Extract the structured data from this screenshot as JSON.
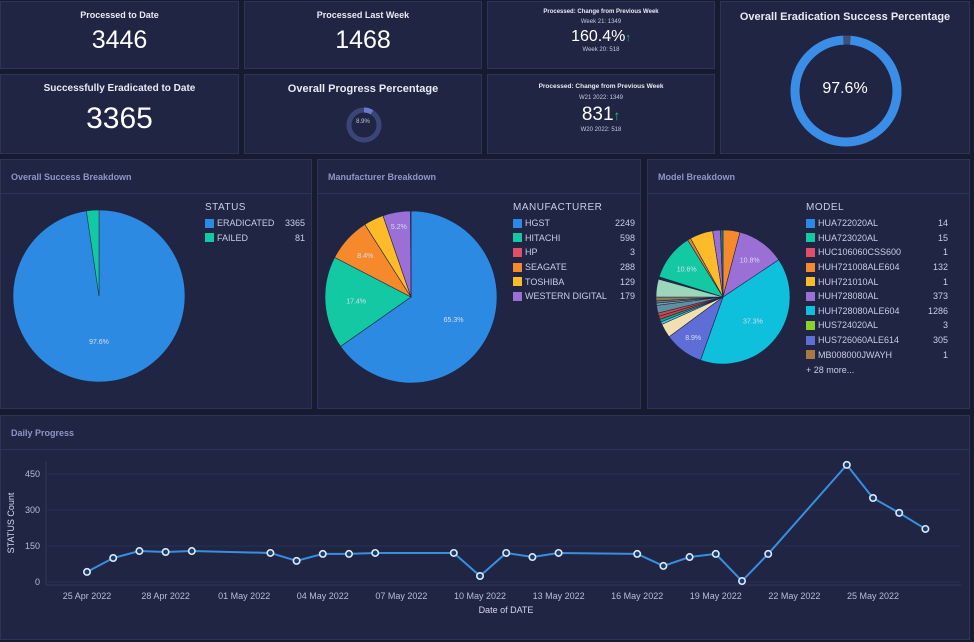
{
  "kpis": {
    "processed_to_date": {
      "title": "Processed to Date",
      "value": "3446"
    },
    "processed_last_week": {
      "title": "Processed Last Week",
      "value": "1468"
    },
    "successfully_eradicated": {
      "title": "Successfully Eradicated to Date",
      "value": "3365"
    },
    "change_pct": {
      "title": "Processed: Change from Previous Week",
      "current": "Week 21: 1349",
      "value": "160.4%",
      "previous": "Week 20: 518",
      "trend": "up"
    },
    "change_abs": {
      "title": "Processed: Change from Previous Week",
      "current": "W21 2022: 1349",
      "value": "831",
      "previous": "W20 2022: 518",
      "trend": "up"
    },
    "overall_progress": {
      "title": "Overall Progress Percentage",
      "label": "8.9%",
      "fraction": 0.089
    },
    "eradication_success": {
      "title": "Overall Eradication Success Percentage",
      "label": "97.6%",
      "fraction": 0.976
    }
  },
  "icons": {
    "trend_up": "↑"
  },
  "colors": {
    "blue": "#2d8ae3",
    "teal": "#12c9a4",
    "red": "#e24d6b",
    "orange": "#f6892c",
    "yellow": "#fdbb2a",
    "purple": "#9a6fd6",
    "cyan": "#0fc0dc",
    "green": "#8ad12e",
    "indigo": "#5e6ed6",
    "brown": "#a67a41"
  },
  "success_breakdown": {
    "title": "Overall Success Breakdown",
    "legend_title": "STATUS",
    "items": [
      {
        "label": "ERADICATED",
        "value": "3365",
        "color": "#2d8ae3"
      },
      {
        "label": "FAILED",
        "value": "81",
        "color": "#12c9a4"
      }
    ],
    "pie_label": "97.6%"
  },
  "manufacturer_breakdown": {
    "title": "Manufacturer Breakdown",
    "legend_title": "MANUFACTURER",
    "items": [
      {
        "label": "HGST",
        "value": "2249",
        "color": "#2d8ae3"
      },
      {
        "label": "HITACHI",
        "value": "598",
        "color": "#12c9a4"
      },
      {
        "label": "HP",
        "value": "3",
        "color": "#e24d6b"
      },
      {
        "label": "SEAGATE",
        "value": "288",
        "color": "#f6892c"
      },
      {
        "label": "TOSHIBA",
        "value": "129",
        "color": "#fdbb2a"
      },
      {
        "label": "WESTERN DIGITAL",
        "value": "179",
        "color": "#9a6fd6"
      }
    ],
    "slice_labels": [
      "65.3%",
      "17.4%",
      "8.4%",
      "5.2%"
    ]
  },
  "model_breakdown": {
    "title": "Model Breakdown",
    "legend_title": "MODEL",
    "items": [
      {
        "label": "HUA722020AL",
        "value": "14",
        "color": "#2d8ae3"
      },
      {
        "label": "HUA723020AL",
        "value": "15",
        "color": "#12c9a4"
      },
      {
        "label": "HUC106060CSS600",
        "value": "1",
        "color": "#e24d6b"
      },
      {
        "label": "HUH721008ALE604",
        "value": "132",
        "color": "#f6892c"
      },
      {
        "label": "HUH721010AL",
        "value": "1",
        "color": "#fdbb2a"
      },
      {
        "label": "HUH728080AL",
        "value": "373",
        "color": "#9a6fd6"
      },
      {
        "label": "HUH728080ALE604",
        "value": "1286",
        "color": "#0fc0dc"
      },
      {
        "label": "HUS724020AL",
        "value": "3",
        "color": "#8ad12e"
      },
      {
        "label": "HUS726060ALE614",
        "value": "305",
        "color": "#5e6ed6"
      },
      {
        "label": "MB008000JWAYH",
        "value": "1",
        "color": "#a67a41"
      }
    ],
    "more_label": "+ 28 more...",
    "slice_labels": [
      "37.3%",
      "10.8%",
      "10.6%",
      "8.9%"
    ]
  },
  "chart_data": {
    "type": "line",
    "title": "Daily Progress",
    "xlabel": "Date of DATE",
    "ylabel": "STATUS Count",
    "ylim": [
      0,
      500
    ],
    "yticks": [
      0,
      150,
      300,
      450
    ],
    "xticks": [
      "25 Apr 2022",
      "28 Apr 2022",
      "01 May 2022",
      "04 May 2022",
      "07 May 2022",
      "10 May 2022",
      "13 May 2022",
      "16 May 2022",
      "19 May 2022",
      "22 May 2022",
      "25 May 2022"
    ],
    "grid": true,
    "x": [
      "25 Apr 2022",
      "26 Apr 2022",
      "27 Apr 2022",
      "28 Apr 2022",
      "29 Apr 2022",
      "02 May 2022",
      "03 May 2022",
      "04 May 2022",
      "05 May 2022",
      "06 May 2022",
      "09 May 2022",
      "10 May 2022",
      "11 May 2022",
      "12 May 2022",
      "13 May 2022",
      "16 May 2022",
      "17 May 2022",
      "18 May 2022",
      "19 May 2022",
      "20 May 2022",
      "21 May 2022",
      "24 May 2022",
      "25 May 2022",
      "26 May 2022",
      "27 May 2022"
    ],
    "day_index": [
      0,
      1,
      2,
      3,
      4,
      7,
      8,
      9,
      10,
      11,
      14,
      15,
      16,
      17,
      18,
      21,
      22,
      23,
      24,
      25,
      26,
      29,
      30,
      31,
      32
    ],
    "series": [
      {
        "name": "STATUS Count",
        "color": "#3a8ee0",
        "values": [
          42,
          100,
          129,
          125,
          129,
          121,
          88,
          117,
          117,
          121,
          121,
          25,
          121,
          104,
          121,
          117,
          67,
          104,
          117,
          4,
          117,
          488,
          350,
          288,
          221
        ]
      }
    ]
  }
}
